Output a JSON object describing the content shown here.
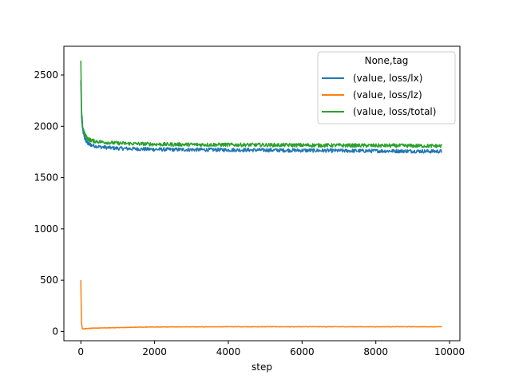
{
  "chart_data": {
    "type": "line",
    "title": "",
    "xlabel": "step",
    "ylabel": "",
    "xlim": [
      -460,
      10280
    ],
    "ylim": [
      -90,
      2780
    ],
    "xticks": [
      0,
      2000,
      4000,
      6000,
      8000,
      10000
    ],
    "xtick_labels": [
      "0",
      "2000",
      "4000",
      "6000",
      "8000",
      "10000"
    ],
    "yticks": [
      0,
      500,
      1000,
      1500,
      2000,
      2500
    ],
    "ytick_labels": [
      "0",
      "500",
      "1000",
      "1500",
      "2000",
      "2500"
    ],
    "grid": false,
    "legend": {
      "title": "None,tag",
      "position": "upper right"
    },
    "series": [
      {
        "name": "(value, loss/lx)",
        "color": "#1f77b4",
        "x": [
          0,
          20,
          50,
          100,
          150,
          200,
          300,
          500,
          800,
          1000,
          1500,
          2000,
          3000,
          4000,
          5000,
          6000,
          7000,
          8000,
          9000,
          9800
        ],
        "y": [
          2450,
          2080,
          1960,
          1890,
          1850,
          1830,
          1815,
          1800,
          1790,
          1785,
          1780,
          1775,
          1772,
          1770,
          1768,
          1765,
          1762,
          1760,
          1758,
          1755
        ],
        "noise": 18
      },
      {
        "name": "(value, loss/lz)",
        "color": "#ff7f0e",
        "x": [
          0,
          10,
          20,
          40,
          60,
          100,
          200,
          400,
          800,
          1200,
          1600,
          2000,
          3000,
          4000,
          5000,
          6000,
          7000,
          8000,
          9000,
          9800
        ],
        "y": [
          500,
          250,
          80,
          30,
          25,
          27,
          30,
          33,
          36,
          39,
          42,
          44,
          45,
          46,
          46,
          46,
          46,
          46,
          46,
          46
        ],
        "noise": 2
      },
      {
        "name": "(value, loss/total)",
        "color": "#2ca02c",
        "x": [
          0,
          20,
          50,
          100,
          150,
          200,
          300,
          500,
          800,
          1000,
          1500,
          2000,
          3000,
          4000,
          5000,
          6000,
          7000,
          8000,
          9000,
          9800
        ],
        "y": [
          2640,
          2150,
          2000,
          1930,
          1895,
          1875,
          1860,
          1850,
          1840,
          1835,
          1830,
          1825,
          1822,
          1820,
          1818,
          1816,
          1814,
          1812,
          1810,
          1808
        ],
        "noise": 18
      }
    ]
  }
}
